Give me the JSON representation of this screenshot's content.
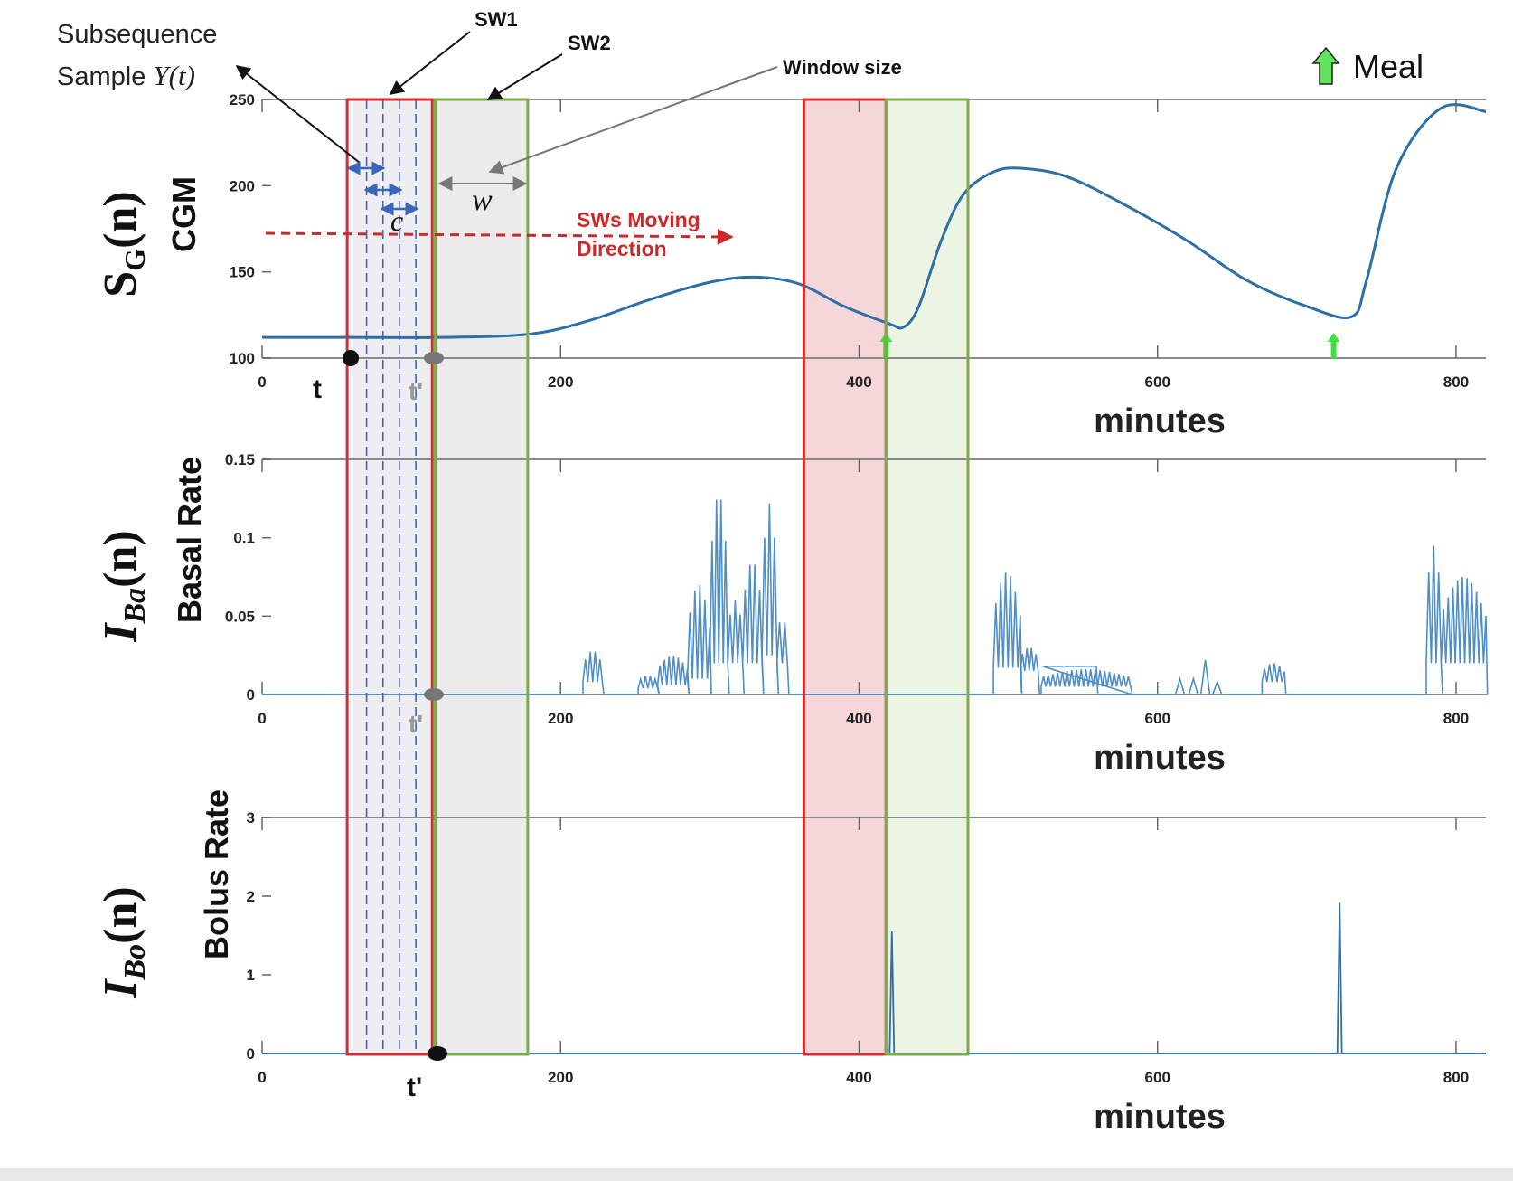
{
  "chart_data": [
    {
      "type": "line",
      "panel": "top",
      "ylabel": "CGM",
      "symbol": "S_G(n)",
      "xlabel": "minutes",
      "xlim": [
        0,
        820
      ],
      "ylim": [
        100,
        250
      ],
      "xticks": [
        0,
        200,
        400,
        600,
        800
      ],
      "yticks": [
        100,
        150,
        200,
        250
      ],
      "series": [
        {
          "x": [
            0,
            60,
            120,
            180,
            220,
            260,
            300,
            330,
            360,
            390,
            420,
            430,
            440,
            455,
            470,
            490,
            510,
            540,
            580,
            620,
            660,
            700,
            730,
            740,
            760,
            790,
            820
          ],
          "values": [
            112,
            112,
            112,
            114,
            122,
            134,
            144,
            147,
            143,
            130,
            120,
            118,
            130,
            168,
            195,
            208,
            210,
            205,
            188,
            168,
            145,
            130,
            124,
            145,
            210,
            245,
            243
          ],
          "color": "#2e6fa6"
        }
      ],
      "meal_markers_x": [
        418,
        718
      ]
    },
    {
      "type": "line",
      "panel": "middle",
      "ylabel": "Basal Rate",
      "symbol": "I_Ba(n)",
      "xlabel": "minutes",
      "xlim": [
        0,
        820
      ],
      "ylim": [
        0,
        0.15
      ],
      "xticks": [
        0,
        200,
        400,
        600,
        800
      ],
      "yticks": [
        0,
        0.05,
        0.1,
        0.15
      ],
      "ytick_labels": [
        "0",
        "0.05",
        "0.1",
        "0.15"
      ],
      "series": [
        {
          "bursts": [
            {
              "x0": 215,
              "x1": 228,
              "base": 0.008,
              "peak": 0.028
            },
            {
              "x0": 252,
              "x1": 265,
              "base": 0.004,
              "peak": 0.012
            },
            {
              "x0": 265,
              "x1": 285,
              "base": 0.006,
              "peak": 0.025
            },
            {
              "x0": 285,
              "x1": 300,
              "base": 0.01,
              "peak": 0.07
            },
            {
              "x0": 300,
              "x1": 312,
              "base": 0.02,
              "peak": 0.128
            },
            {
              "x0": 312,
              "x1": 322,
              "base": 0.02,
              "peak": 0.06
            },
            {
              "x0": 322,
              "x1": 335,
              "base": 0.02,
              "peak": 0.085
            },
            {
              "x0": 335,
              "x1": 345,
              "base": 0.025,
              "peak": 0.122
            },
            {
              "x0": 345,
              "x1": 352,
              "base": 0.02,
              "peak": 0.05
            },
            {
              "x0": 490,
              "x1": 508,
              "base": 0.017,
              "peak": 0.078
            },
            {
              "x0": 508,
              "x1": 520,
              "base": 0.015,
              "peak": 0.03
            },
            {
              "x0": 522,
              "x1": 582,
              "base": 0.005,
              "peak": 0.016
            },
            {
              "x0": 670,
              "x1": 685,
              "base": 0.008,
              "peak": 0.02
            },
            {
              "x0": 780,
              "x1": 790,
              "base": 0.02,
              "peak": 0.095
            },
            {
              "x0": 790,
              "x1": 820,
              "base": 0.02,
              "peak": 0.075
            }
          ],
          "plateaus": [
            {
              "x0": 522,
              "x1": 560,
              "value": 0.018
            }
          ],
          "bumps": [
            {
              "x": 615,
              "value": 0.01
            },
            {
              "x": 624,
              "value": 0.01
            },
            {
              "x": 632,
              "value": 0.022
            },
            {
              "x": 640,
              "value": 0.008
            }
          ],
          "color": "#4f8fc6"
        }
      ]
    },
    {
      "type": "line",
      "panel": "bottom",
      "ylabel": "Bolus Rate",
      "symbol": "I_Bo(n)",
      "xlabel": "minutes",
      "xlim": [
        0,
        820
      ],
      "ylim": [
        0,
        3
      ],
      "xticks": [
        0,
        200,
        400,
        600,
        800
      ],
      "yticks": [
        0,
        1,
        2,
        3
      ],
      "series": [
        {
          "spikes": [
            {
              "x": 422,
              "value": 1.55
            },
            {
              "x": 722,
              "value": 1.92
            }
          ],
          "color": "#2e6fa6"
        }
      ]
    }
  ],
  "windows": {
    "sw1": {
      "x0": 57,
      "x1": 114,
      "label": "SW1"
    },
    "sw2": {
      "x0": 116,
      "x1": 178,
      "label": "SW2"
    },
    "sw1b": {
      "x0": 363,
      "x1": 418
    },
    "sw2b": {
      "x0": 418,
      "x1": 473
    },
    "dashed_lines_x": [
      70,
      81,
      92,
      103
    ],
    "colors": {
      "sw1_edge": "#d03030",
      "sw1_fill": "#f2c8cc",
      "sw2_edge": "#7faa4a",
      "sw2_fill": "#e4efd9",
      "grey_fill": "#ebebeb"
    }
  },
  "annotations": {
    "subsequence_line1": "Subsequence",
    "subsequence_line2": "Sample ",
    "subsequence_math": "Y(t)",
    "sw1": "SW1",
    "sw2": "SW2",
    "window_size": "Window size",
    "w": "w",
    "c": "c",
    "direction_line1": "SWs Moving",
    "direction_line2": "Direction",
    "t": "t",
    "t_prime": "t'",
    "meal": "Meal"
  },
  "symbols": {
    "sg_main": "S",
    "sg_sub": "G",
    "sg_arg": "(n)",
    "iba_main": "I",
    "iba_sub": "Ba",
    "iba_arg": "(n)",
    "ibo_main": "I",
    "ibo_sub": "Bo",
    "ibo_arg": "(n)"
  }
}
